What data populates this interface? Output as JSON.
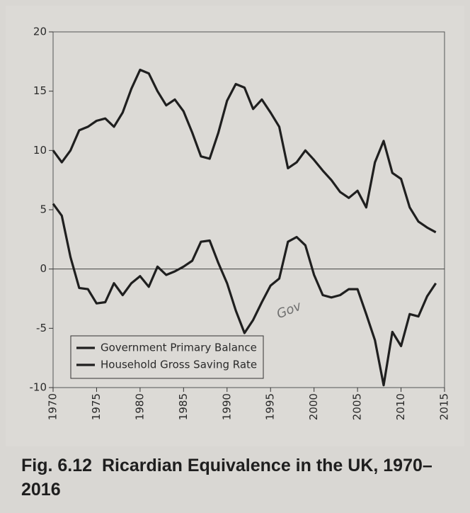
{
  "chart_data": {
    "type": "line",
    "figure_label": "Fig. 6.12",
    "title": "Ricardian Equivalence in the UK, 1970–2016",
    "x": [
      1970,
      1971,
      1972,
      1973,
      1974,
      1975,
      1976,
      1977,
      1978,
      1979,
      1980,
      1981,
      1982,
      1983,
      1984,
      1985,
      1986,
      1987,
      1988,
      1989,
      1990,
      1991,
      1992,
      1993,
      1994,
      1995,
      1996,
      1997,
      1998,
      1999,
      2000,
      2001,
      2002,
      2003,
      2004,
      2005,
      2006,
      2007,
      2008,
      2009,
      2010,
      2011,
      2012,
      2013,
      2014
    ],
    "series": [
      {
        "name": "Government Primary Balance",
        "color": "#1f1f1f",
        "values": [
          5.5,
          4.5,
          1,
          -1.6,
          -1.7,
          -2.9,
          -2.8,
          -1.2,
          -2.2,
          -1.2,
          -0.6,
          -1.5,
          0.2,
          -0.5,
          -0.2,
          0.2,
          0.7,
          2.3,
          2.4,
          0.5,
          -1.2,
          -3.5,
          -5.4,
          -4.3,
          -2.8,
          -1.4,
          -0.8,
          2.3,
          2.7,
          2.0,
          -0.5,
          -2.2,
          -2.4,
          -2.2,
          -1.7,
          -1.7,
          -3.8,
          -6,
          -9.8,
          -5.3,
          -6.5,
          -3.8,
          -4,
          -2.3,
          -1.2
        ]
      },
      {
        "name": "Household Gross Saving Rate",
        "color": "#1f1f1f",
        "values": [
          10,
          9,
          10,
          11.7,
          12,
          12.5,
          12.7,
          12,
          13.2,
          15.2,
          16.8,
          16.5,
          15,
          13.8,
          14.3,
          13.3,
          11.5,
          9.5,
          9.3,
          11.5,
          14.2,
          15.6,
          15.3,
          13.5,
          14.3,
          13.2,
          12,
          8.5,
          9,
          10,
          9.2,
          8.3,
          7.5,
          6.5,
          6,
          6.6,
          5.2,
          9,
          10.8,
          8.1,
          7.6,
          5.2,
          4,
          3.5,
          3.1
        ]
      }
    ],
    "xlim": [
      1970,
      2015
    ],
    "xticks": [
      1970,
      1975,
      1980,
      1985,
      1990,
      1995,
      2000,
      2005,
      2010,
      2015
    ],
    "ylim": [
      -10,
      20
    ],
    "yticks": [
      -10,
      -5,
      0,
      5,
      10,
      15,
      20
    ],
    "zero_line": true,
    "legend": "lower left",
    "annotations": [
      {
        "text": "Gov"
      }
    ]
  }
}
